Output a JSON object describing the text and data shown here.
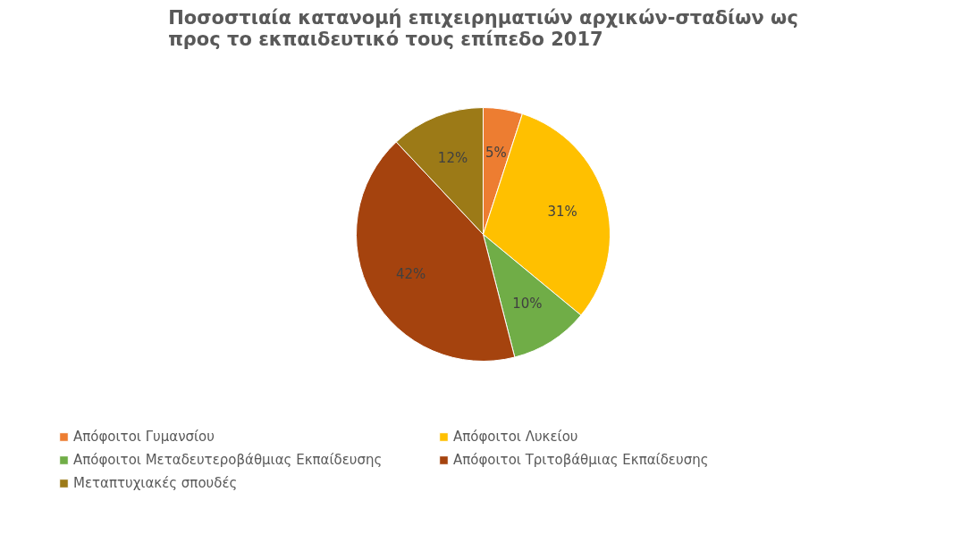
{
  "chart_data": {
    "type": "pie",
    "title": "Ποσοστιαία κατανομή επιχειρηματιών αρχικών-σταδίων ως προς το εκπαιδευτικό τους επίπεδο 2017",
    "categories": [
      "Απόφοιτοι Γυμανσίου",
      "Απόφοιτοι Λυκείου",
      "Απόφοιτοι Μεταδευτεροβάθμιας Εκπαίδευσης",
      "Απόφοιτοι Τριτοβάθμιας Εκπαίδευσης",
      "Μεταπτυχιακές σπουδές"
    ],
    "values": [
      5,
      31,
      10,
      42,
      12
    ],
    "value_labels": [
      "5%",
      "31%",
      "10%",
      "42%",
      "12%"
    ],
    "colors": [
      "#ed7d31",
      "#ffc000",
      "#70ad47",
      "#a5430e",
      "#9c7a17"
    ],
    "legend": "bottom"
  }
}
